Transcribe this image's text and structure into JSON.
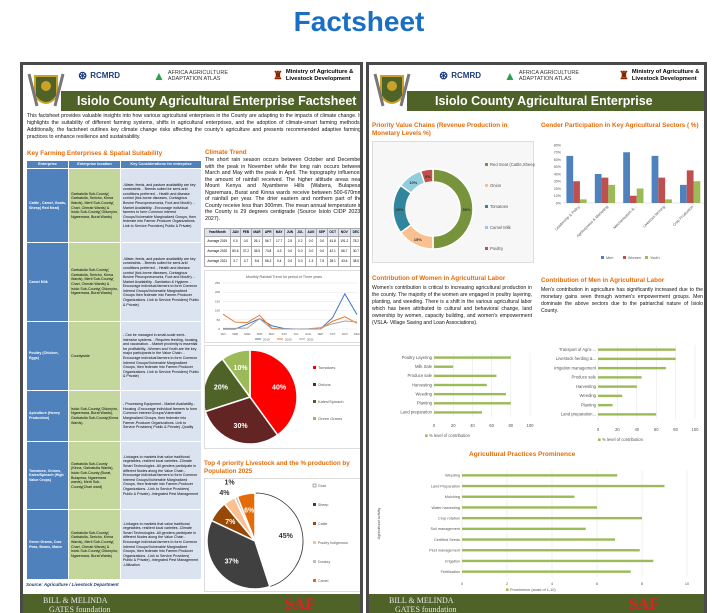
{
  "main_title": "Factsheet",
  "header": {
    "rcmrd": "RCMRD",
    "atlas_line1": "AFRICA AGRICULTURE",
    "atlas_line2": "ADAPTATION ATLAS",
    "ministry_line1": "Ministry of Agriculture &",
    "ministry_line2": "Livestock Development",
    "title": "Isiolo County Agricultural Enterprise Factsheet"
  },
  "footer": {
    "gates_line1": "BILL & MELINDA",
    "gates_line2": "GATES foundation",
    "saf": "SAF"
  },
  "page1": {
    "intro": "This factsheet provides valuable insights into how various agricultural enterprises in the County are adapting to the impacts of climate change. It highlights the suitability of different farming systems, shifts in agricultural enterprises, and the adoption of climate-smart farming methods. Additionally, the factsheet outlines key climate change risks affecting the county's agriculture and presents recommended adaptive farming practices to enhance resilience and sustainability.",
    "enterprise_heading": "Key Farming Enterprises & Spatial Suitability",
    "table_headers": [
      "Enterprise",
      "Enterprise location",
      "Key Considerations for enterprise"
    ],
    "table_rows": [
      {
        "enterprise": "Cattle , Camel, Goats, Sheep( Red Meat)",
        "location": "Garbatulla Sub-County( Garbatulla, Sericho, Kinna Wards), Merti Sub-County( Chari, Cherab Wards) & Isiolo Sub-County( Oldonyiro, Ngaremara, Burat Wards)",
        "considerations": "-Water, feeds, and pasture availability are key constraints. - Breeds suited for semi-arid conditions preferred. - Health and disease control (tick-borne diseases, Contagious Bovine Pleuropneumonia, Foot and Mouth). -Market Availability. -Encourage individual farmers to form Common Interest Groups/Vulnerable Marginalized Groups, then federate into Farmer-Producer Organizations. Link to Service Providers( Public & Private)"
      },
      {
        "enterprise": "Camel Milk",
        "location": "Garbatulla Sub-County( Garbatulla, Sericho, Kinna Wards), Merti Sub-County( Chari, Cherab Wards) & Isiolo Sub-County( Oldonyiro, Ngaremara, Burat Wards)",
        "considerations": "-Water, feeds, and pasture availability are key constraints. - Breeds suited for semi-arid conditions preferred. - Health and disease control (tick-borne diseases, Contagious Bovine Pleuropneumonia, Foot and Mouth). -Market Availability. -Sanitation & Hygiene. -Encourage individual farmers to form Common Interest Groups/Vulnerable Marginalized Groups then federate into Farmer-Producer Organizations. Link to Service Providers( Public & Private)"
      },
      {
        "enterprise": "Poultry (Chicken, Eggs)",
        "location": "Countywide",
        "considerations": "- Can be managed in small-scale semi-intensive systems. - Requires feeding, housing, and vaccination. - Market proximity is essential for profitability. -Women and Youth are the key major participants in the Value Chain. -Encourage individual farmers to form Common Interest Groups/Vulnerable Marginalized Groups, then federate into Farmer-Producer Organizations. Link to Service Providers( Public & Private)"
      },
      {
        "enterprise": "Apiculture (Honey Production)",
        "location": "Isiolo Sub-County( Oldonyiro, Ngaremara, Burat Wards), Garbatulla Sub-County(Kinna Wards).",
        "considerations": "- Processing Equipment - Market Availability -Housing -Encourage individual farmers to form Common Interest Groups/Vulnerable Marginalized Groups, then federate into Farmer-Producer Organizations. Link to Service Providers( Public & Private) -Quality"
      },
      {
        "enterprise": "Tomatoes, Onions, Kales/Spinach (High Value Crops)",
        "location": "Garbatulla Sub-County (Kinna, Garbatulla Wards), Isiolo Sub-County (Burat, Bulapesa, Ngaremara wards), Merti Sub-County(Chari ward)",
        "considerations": "-Linkages to markets that value traditional vegetables, resilient local varieties -Climate Smart Technologies -All genders participate in different Nodes along the Value Chain -Encourage individual farmers to form Common Interest Groups/Vulnerable Marginalized Groups, then federate into Farmer-Producer Organizations. -Link to Service Providers( Public & Private) -Integrated Pest Management"
      },
      {
        "enterprise": "Green Grams, Cow Peas, Beans, Maize",
        "location": "Garbatulla Sub-County( Garbatulla, Sericho, Kinna Wards), Merti Sub-County( Chari, Cherab Wards) & Isiolo Sub-County( Oldonyiro, Ngaremara, Burat Wards)",
        "considerations": "-Linkages to markets that value traditional vegetables, resilient local varieties -Climate Smart Technologies -All genders participate in different Nodes along the Value Chain -Encourage individual farmers to form Common Interest Groups/Vulnerable Marginalized Groups, then federate into Farmer-Producer Organizations. -Link to Service Providers( Public & Private) -Integrated Pest Management -Utilization"
      }
    ],
    "source": "Source: Agriculture / Livestock Department",
    "climate_heading": "Climate Trend",
    "climate_text": "The short rain season occurs between October and December with the peak in November while the long rain occurs between March and May with the peak in April. The topography influences the amount of rainfall received. The higher altitude areas near Mount Kenya and Nyambene Hills (Wabera, Bulapesa, Ngaremara, Burat and Kinna wards receive between 500-670mm of rainfall per year. The drier eastern and northern part of the County receive less than 300mm. The mean annual temperature in the County is 29 degrees centigrade (Source Isiolo CIDP 2023-2027).",
    "rain_table": {
      "header": "Year/Month",
      "rows": [
        {
          "label": "Average 2019"
        },
        {
          "label": "Average 2020"
        },
        {
          "label": "Average 2021"
        }
      ]
    },
    "livestock_heading": "Top 4 priority Livestock and the % production by Population 2025"
  },
  "page2": {
    "value_chain_heading": "Priority Value Chains  (Revenue Production in Monetary Levels %)",
    "gender_heading": "Gender Participation in  Key Agricultural Sectors ( %)",
    "women_heading": "Contribution of Women in Agricultural Labor",
    "women_text": "Women's contribution is critical to increasing agricultural production in the county. The majority of the women are engaged in poultry layering, planting, and weeding. There is a shift in the various agricultural labor which has been attributed to cultural and behavioral change, land ownership by women, capacity building, and women's empowerment (VSLA- Village Saving and Loan Associations).",
    "men_heading": "Contribution of Men in Agricultural Labor",
    "men_text": "Men's contribution in agriculture has significantly increased due to the monetary gains seen through women's empowerment groups. Men dominate the above sectors due to the patriarchal nature of Isiolo County.",
    "practices_heading": "Agricultural Practices Prominence"
  },
  "chart_data": [
    {
      "id": "rain",
      "type": "line",
      "title": "Monthly Rainfall Trend for period of Three years",
      "categories": [
        "JAN",
        "FEB",
        "MAR",
        "APR",
        "MAY",
        "JUN",
        "JUL",
        "AUG",
        "SEP",
        "OCT",
        "NOV",
        "DEC"
      ],
      "ylim": [
        0,
        250
      ],
      "yticks": [
        "0",
        "50",
        "100",
        "150",
        "200",
        "250"
      ],
      "series": [
        {
          "name": "2019",
          "color": "#4472c4",
          "values": [
            0.0,
            0.0,
            26.1,
            56.7,
            17.7,
            2.5,
            0.2,
            0.0,
            0.0,
            61.8,
            191.2,
            78.2
          ]
        },
        {
          "name": "2020",
          "color": "#ed7d31",
          "values": [
            80.6,
            37.2,
            35.5,
            74.8,
            4.3,
            0.0,
            0.0,
            0.0,
            0.0,
            42.1,
            66.7,
            30.7
          ]
        },
        {
          "name": "2021",
          "color": "#a5a5a5",
          "values": [
            3.7,
            3.7,
            5.6,
            56.3,
            0.4,
            0.0,
            0.0,
            1.3,
            7.5,
            28.1,
            43.6,
            38.5
          ]
        }
      ]
    },
    {
      "id": "crops",
      "type": "pie",
      "labels": [
        "Tomatoes",
        "Onions",
        "Kales/Spinach",
        "Green Grams"
      ],
      "values": [
        40,
        30,
        20,
        10
      ],
      "value_labels": [
        "40%",
        "30%",
        "20%",
        "10%"
      ],
      "colors": [
        "#ff0000",
        "#632523",
        "#4f6228",
        "#9bbb59"
      ]
    },
    {
      "id": "livestock",
      "type": "pie",
      "title": "Top 4 priority Livestock and the % production by Population 2025",
      "labels": [
        "Goat",
        "Sheep",
        "Cattle",
        "Poultry Indigenous",
        "Donkey",
        "Camel"
      ],
      "values": [
        45,
        37,
        7,
        4,
        1,
        6
      ],
      "value_labels": [
        "45%",
        "37%",
        "7%",
        "4%",
        "1%",
        "6%"
      ],
      "colors": [
        "#ffffff",
        "#404040",
        "#984807",
        "#fac090",
        "#bfbfbf",
        "#e36c09"
      ]
    },
    {
      "id": "valuechain",
      "type": "pie",
      "donut": true,
      "labels": [
        "Red meat (Cattle,Sheep,Goat, Camel)",
        "Onion",
        "Tomatoes",
        "Camel Milk",
        "Poultry"
      ],
      "values": [
        50,
        15,
        20,
        10,
        5
      ],
      "value_labels": [
        "50%",
        "15%",
        "20%",
        "10%",
        "5%"
      ],
      "colors": [
        "#77933c",
        "#fac090",
        "#31859c",
        "#92cddc",
        "#c0504d"
      ]
    },
    {
      "id": "gender",
      "type": "bar",
      "categories": [
        "Leadership & Policy",
        "Agribusiness & Marketing",
        "Mechanisation &...",
        "Livestock farming",
        "Crop Production"
      ],
      "ylim": [
        0,
        80
      ],
      "yticks": [
        "0%",
        "10%",
        "20%",
        "30%",
        "40%",
        "50%",
        "60%",
        "70%",
        "80%"
      ],
      "series": [
        {
          "name": "Men",
          "color": "#4f81bd",
          "values": [
            65,
            40,
            70,
            65,
            25
          ]
        },
        {
          "name": "Women",
          "color": "#c0504d",
          "values": [
            30,
            35,
            10,
            35,
            45
          ]
        },
        {
          "name": "Youth",
          "color": "#9bbb59",
          "values": [
            5,
            25,
            20,
            5,
            30
          ]
        }
      ]
    },
    {
      "id": "women",
      "type": "bar",
      "orientation": "horizontal",
      "categories": [
        "Poultry Layering",
        "Milk Sale",
        "Produce sale",
        "Harvesting",
        "Weeding",
        "Planting",
        "Land preparation"
      ],
      "values": [
        80,
        20,
        65,
        55,
        75,
        80,
        50
      ],
      "xlim": [
        0,
        100
      ],
      "xticks": [
        "0",
        "20",
        "40",
        "60",
        "80",
        "100"
      ],
      "legend": "% level of contribution"
    },
    {
      "id": "men",
      "type": "bar",
      "orientation": "horizontal",
      "categories": [
        "Transport of Agro-...",
        "Livestock herding &...",
        "Irrigation management",
        "Produce sale",
        "Harvesting",
        "Weeding",
        "Planting",
        "Land preparation..."
      ],
      "values": [
        80,
        80,
        70,
        45,
        40,
        25,
        15,
        60
      ],
      "xlim": [
        0,
        100
      ],
      "xticks": [
        "0",
        "20",
        "40",
        "60",
        "80",
        "100"
      ],
      "legend": "% level of contribution"
    },
    {
      "id": "practices",
      "type": "bar",
      "orientation": "horizontal",
      "ylabel": "Agricultural activity",
      "categories": [
        "Weeding",
        "Land Preparation",
        "Mulching",
        "Water harvesting",
        "Crop rotation",
        "Soil management",
        "Certified Seeds",
        "Pest management",
        "Irrigation",
        "Fertilization"
      ],
      "values": [
        6.9,
        9,
        5,
        6,
        8,
        5.5,
        6.8,
        7.9,
        8.5,
        7.5
      ],
      "xlim": [
        0,
        10
      ],
      "xticks": [
        "0",
        "2",
        "4",
        "6",
        "8",
        "10"
      ],
      "legend": "Prominence (scale of 1-10)"
    }
  ]
}
